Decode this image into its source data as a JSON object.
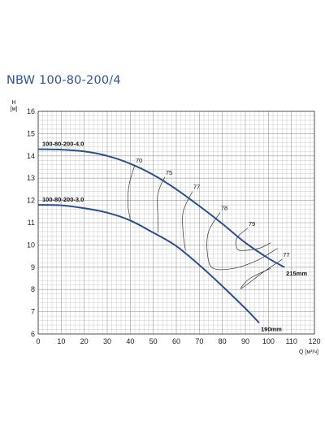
{
  "page": {
    "title": "NBW 100-80-200/4"
  },
  "chart_data": {
    "type": "line",
    "title": "NBW 100-80-200/4",
    "xlabel": "Q [м³/ч]",
    "ylabel_top": "H",
    "ylabel_bottom": "[м]",
    "xlim": [
      0,
      120
    ],
    "ylim": [
      6,
      16
    ],
    "xticks": [
      0,
      10,
      20,
      30,
      40,
      50,
      60,
      70,
      80,
      90,
      100,
      110,
      120
    ],
    "yticks": [
      6,
      7,
      8,
      9,
      10,
      11,
      12,
      13,
      14,
      15,
      16
    ],
    "grid": true,
    "colors": {
      "curve": "#2b4f8c",
      "efficiency": "#333333",
      "grid": "#9a9a9a",
      "title": "#2f5591"
    },
    "series": [
      {
        "name": "100-80-200-4.0",
        "end_label": "215mm",
        "x": [
          0,
          10,
          20,
          30,
          40,
          50,
          60,
          70,
          80,
          90,
          100,
          107
        ],
        "y": [
          14.3,
          14.28,
          14.2,
          14.0,
          13.65,
          13.15,
          12.5,
          11.75,
          10.95,
          10.1,
          9.4,
          9.0
        ]
      },
      {
        "name": "100-80-200-3.0",
        "end_label": "190mm",
        "x": [
          0,
          10,
          20,
          30,
          40,
          50,
          60,
          70,
          80,
          90,
          96
        ],
        "y": [
          11.8,
          11.78,
          11.65,
          11.45,
          11.1,
          10.55,
          9.95,
          9.1,
          8.15,
          7.15,
          6.5
        ]
      }
    ],
    "efficiency_lines": [
      {
        "label": "70",
        "points": [
          [
            42,
            13.6
          ],
          [
            39.5,
            12.7
          ],
          [
            39,
            11.8
          ],
          [
            40,
            11.15
          ]
        ]
      },
      {
        "label": "75",
        "points": [
          [
            55,
            13.05
          ],
          [
            52,
            12.3
          ],
          [
            52,
            11.2
          ],
          [
            52,
            10.55
          ]
        ]
      },
      {
        "label": "77",
        "points": [
          [
            67,
            12.4
          ],
          [
            63,
            11.5
          ],
          [
            63,
            10.5
          ],
          [
            64,
            9.75
          ]
        ]
      },
      {
        "label": "78",
        "points": [
          [
            79,
            11.45
          ],
          [
            74,
            10.6
          ],
          [
            73.5,
            9.6
          ],
          [
            76,
            8.95
          ],
          [
            85,
            8.95
          ],
          [
            95,
            9.3
          ],
          [
            104,
            9.85
          ]
        ]
      },
      {
        "label": "79",
        "points": [
          [
            91,
            10.75
          ],
          [
            86.5,
            10.35
          ],
          [
            86,
            9.95
          ],
          [
            88,
            9.75
          ],
          [
            96,
            9.85
          ],
          [
            101,
            10.1
          ]
        ]
      },
      {
        "label": "77",
        "points": [
          [
            106,
            9.35
          ],
          [
            98,
            8.8
          ],
          [
            91,
            8.25
          ],
          [
            88,
            8.05
          ],
          [
            92,
            8.5
          ],
          [
            101,
            8.95
          ]
        ]
      }
    ]
  }
}
